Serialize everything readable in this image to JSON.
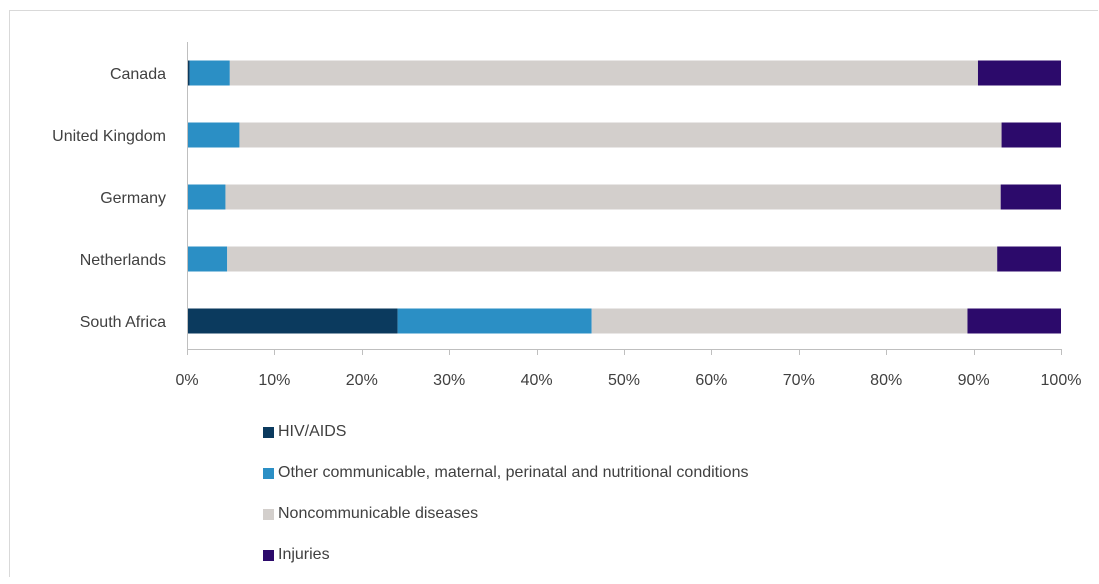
{
  "chart_data": {
    "type": "bar",
    "orientation": "horizontal",
    "stacked": "percent",
    "categories": [
      "Canada",
      "United Kingdom",
      "Germany",
      "Netherlands",
      "South Africa"
    ],
    "series": [
      {
        "name": "HIV/AIDS",
        "color": "#0b3a5e",
        "values": [
          0.3,
          0.1,
          0.1,
          0.1,
          24.1
        ]
      },
      {
        "name": "Other communicable, maternal, perinatal and nutritional conditions",
        "color": "#2b8fc5",
        "values": [
          4.6,
          5.9,
          4.3,
          4.5,
          22.2
        ]
      },
      {
        "name": "Noncommunicable diseases",
        "color": "#d3cfcc",
        "values": [
          85.6,
          87.2,
          88.7,
          88.1,
          43.0
        ]
      },
      {
        "name": "Injuries",
        "color": "#2c0a6b",
        "values": [
          9.5,
          6.8,
          6.9,
          7.3,
          10.7
        ]
      }
    ],
    "xlim": [
      0,
      100
    ],
    "x_ticks": [
      "0%",
      "10%",
      "20%",
      "30%",
      "40%",
      "50%",
      "60%",
      "70%",
      "80%",
      "90%",
      "100%"
    ],
    "legend_position": "bottom",
    "grid": false
  }
}
